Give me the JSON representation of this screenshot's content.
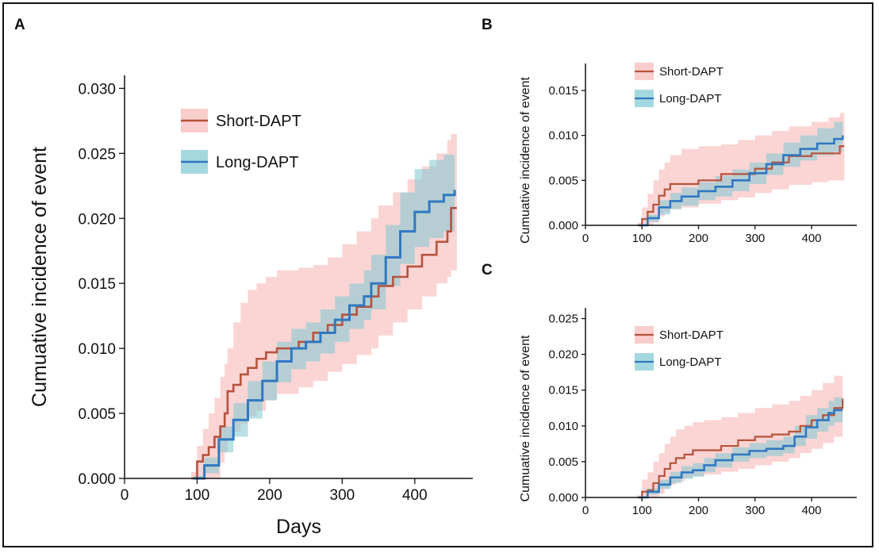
{
  "colors": {
    "short_line": "#b5533c",
    "short_band": "#f8b8b8",
    "long_line": "#2f78c2",
    "long_band": "#7ec8d2"
  },
  "chart_data": [
    {
      "panel": "A",
      "type": "line",
      "xlabel": "Days",
      "ylabel": "Cumuative incidence of event",
      "xlim": [
        0,
        480
      ],
      "ylim": [
        0,
        0.031
      ],
      "xticks": [
        0,
        100,
        200,
        300,
        400
      ],
      "yticks": [
        "0.000",
        "0.005",
        "0.010",
        "0.015",
        "0.020",
        "0.025",
        "0.030"
      ],
      "legend_position": "top-center",
      "series": [
        {
          "name": "Short-DAPT",
          "x": [
            92,
            100,
            108,
            116,
            124,
            132,
            138,
            142,
            150,
            160,
            170,
            182,
            195,
            210,
            240,
            260,
            280,
            300,
            320,
            340,
            350,
            370,
            390,
            410,
            430,
            445,
            450,
            458
          ],
          "y": [
            0,
            0.0013,
            0.0018,
            0.0024,
            0.0032,
            0.004,
            0.005,
            0.0067,
            0.0072,
            0.008,
            0.0085,
            0.0092,
            0.0097,
            0.01,
            0.0105,
            0.0112,
            0.0118,
            0.0126,
            0.0132,
            0.014,
            0.0148,
            0.0155,
            0.0163,
            0.0172,
            0.0182,
            0.019,
            0.0208,
            0.0208
          ],
          "band_upper": [
            0.0005,
            0.0025,
            0.0038,
            0.005,
            0.0062,
            0.0078,
            0.0088,
            0.01,
            0.012,
            0.0135,
            0.0145,
            0.015,
            0.0155,
            0.016,
            0.0162,
            0.0164,
            0.017,
            0.018,
            0.019,
            0.02,
            0.021,
            0.022,
            0.023,
            0.024,
            0.025,
            0.026,
            0.0265,
            0.0265
          ],
          "band_lower": [
            0,
            0,
            0,
            0,
            0,
            0.0012,
            0.002,
            0.003,
            0.0036,
            0.0042,
            0.0048,
            0.0052,
            0.006,
            0.0065,
            0.007,
            0.0075,
            0.0082,
            0.0088,
            0.0095,
            0.01,
            0.011,
            0.012,
            0.013,
            0.014,
            0.015,
            0.0155,
            0.016,
            0.016
          ]
        },
        {
          "name": "Long-DAPT",
          "x": [
            95,
            110,
            130,
            150,
            170,
            190,
            210,
            230,
            250,
            270,
            290,
            310,
            330,
            340,
            360,
            380,
            400,
            420,
            440,
            455
          ],
          "y": [
            0,
            0.001,
            0.003,
            0.0045,
            0.006,
            0.0075,
            0.009,
            0.01,
            0.0105,
            0.0112,
            0.0122,
            0.0133,
            0.014,
            0.015,
            0.017,
            0.019,
            0.0205,
            0.0213,
            0.0218,
            0.0222
          ],
          "band_upper": [
            0.0002,
            0.0016,
            0.004,
            0.0058,
            0.0075,
            0.009,
            0.0105,
            0.0115,
            0.012,
            0.013,
            0.014,
            0.015,
            0.016,
            0.0172,
            0.0195,
            0.022,
            0.0238,
            0.0245,
            0.0249,
            0.025
          ],
          "band_lower": [
            0,
            0.0004,
            0.002,
            0.0032,
            0.0046,
            0.006,
            0.0074,
            0.0084,
            0.009,
            0.0096,
            0.0105,
            0.0115,
            0.0122,
            0.013,
            0.0148,
            0.0165,
            0.0178,
            0.0185,
            0.019,
            0.0193
          ]
        }
      ]
    },
    {
      "panel": "B",
      "type": "line",
      "xlabel": "",
      "ylabel": "Cumuative incidence of event",
      "xlim": [
        0,
        480
      ],
      "ylim": [
        0,
        0.018
      ],
      "xticks": [
        0,
        100,
        200,
        300,
        400
      ],
      "yticks": [
        "0.000",
        "0.005",
        "0.010",
        "0.015"
      ],
      "legend_position": "top-center",
      "series": [
        {
          "name": "Short-DAPT",
          "x": [
            92,
            100,
            110,
            120,
            130,
            140,
            150,
            170,
            200,
            240,
            270,
            300,
            330,
            360,
            400,
            430,
            450,
            458
          ],
          "y": [
            0,
            0.0007,
            0.0015,
            0.0023,
            0.0033,
            0.004,
            0.0046,
            0.0046,
            0.005,
            0.0057,
            0.0057,
            0.0063,
            0.007,
            0.0077,
            0.008,
            0.008,
            0.0088,
            0.0088
          ],
          "band_upper": [
            0.0003,
            0.002,
            0.0035,
            0.005,
            0.0062,
            0.007,
            0.0078,
            0.0085,
            0.0088,
            0.009,
            0.0095,
            0.01,
            0.0105,
            0.011,
            0.0115,
            0.012,
            0.0125,
            0.0125
          ],
          "band_lower": [
            0,
            0,
            0,
            0.0003,
            0.001,
            0.0015,
            0.0018,
            0.002,
            0.0024,
            0.0028,
            0.0031,
            0.0036,
            0.004,
            0.0045,
            0.0048,
            0.005,
            0.005,
            0.005
          ]
        },
        {
          "name": "Long-DAPT",
          "x": [
            95,
            110,
            130,
            150,
            170,
            200,
            230,
            260,
            290,
            320,
            350,
            380,
            410,
            440,
            455
          ],
          "y": [
            0,
            0.0008,
            0.002,
            0.0027,
            0.0032,
            0.0038,
            0.0043,
            0.005,
            0.0058,
            0.0068,
            0.0078,
            0.0085,
            0.0091,
            0.0096,
            0.01
          ],
          "band_upper": [
            0.0002,
            0.0012,
            0.0028,
            0.0036,
            0.0042,
            0.0048,
            0.0055,
            0.0062,
            0.007,
            0.008,
            0.0092,
            0.01,
            0.0108,
            0.0115,
            0.0118
          ],
          "band_lower": [
            0,
            0.0004,
            0.0012,
            0.0018,
            0.0022,
            0.0028,
            0.0032,
            0.0038,
            0.0046,
            0.0056,
            0.0065,
            0.0072,
            0.0078,
            0.0082,
            0.0084
          ]
        }
      ]
    },
    {
      "panel": "C",
      "type": "line",
      "xlabel": "",
      "ylabel": "Cumuative incidence of event",
      "xlim": [
        0,
        480
      ],
      "ylim": [
        0,
        0.0265
      ],
      "xticks": [
        0,
        100,
        200,
        300,
        400
      ],
      "yticks": [
        "0.000",
        "0.005",
        "0.010",
        "0.015",
        "0.020",
        "0.025"
      ],
      "legend_position": "top-center",
      "series": [
        {
          "name": "Short-DAPT",
          "x": [
            92,
            100,
            110,
            120,
            130,
            140,
            150,
            160,
            175,
            190,
            210,
            240,
            270,
            300,
            330,
            360,
            380,
            400,
            420,
            440,
            455
          ],
          "y": [
            0,
            0.0008,
            0.001,
            0.002,
            0.003,
            0.004,
            0.0048,
            0.0055,
            0.006,
            0.0066,
            0.0066,
            0.0072,
            0.008,
            0.0085,
            0.0088,
            0.0092,
            0.01,
            0.0108,
            0.0115,
            0.0125,
            0.0138
          ],
          "band_upper": [
            0.0003,
            0.0025,
            0.0035,
            0.005,
            0.0062,
            0.0075,
            0.0085,
            0.0095,
            0.01,
            0.0105,
            0.0108,
            0.0112,
            0.0118,
            0.0125,
            0.013,
            0.0135,
            0.0142,
            0.015,
            0.016,
            0.017,
            0.0182
          ],
          "band_lower": [
            0,
            0,
            0,
            0,
            0.0005,
            0.0012,
            0.0018,
            0.0022,
            0.0027,
            0.003,
            0.0032,
            0.0036,
            0.004,
            0.0045,
            0.005,
            0.0055,
            0.0062,
            0.0068,
            0.0076,
            0.0085,
            0.0092
          ]
        },
        {
          "name": "Long-DAPT",
          "x": [
            95,
            110,
            130,
            150,
            170,
            190,
            210,
            230,
            260,
            290,
            320,
            350,
            370,
            390,
            410,
            430,
            440,
            455
          ],
          "y": [
            0,
            0.0008,
            0.0018,
            0.0028,
            0.0035,
            0.0038,
            0.0045,
            0.0052,
            0.006,
            0.0065,
            0.0068,
            0.0072,
            0.0085,
            0.0098,
            0.0108,
            0.0118,
            0.0122,
            0.0122
          ],
          "band_upper": [
            0.0002,
            0.0013,
            0.0025,
            0.0036,
            0.0044,
            0.0048,
            0.0055,
            0.0062,
            0.007,
            0.0076,
            0.008,
            0.0085,
            0.01,
            0.0115,
            0.0125,
            0.0135,
            0.014,
            0.0142
          ],
          "band_lower": [
            0,
            0.0004,
            0.0012,
            0.002,
            0.0026,
            0.0029,
            0.0035,
            0.0042,
            0.005,
            0.0055,
            0.0058,
            0.0062,
            0.0072,
            0.0082,
            0.0092,
            0.01,
            0.0105,
            0.0105
          ]
        }
      ]
    }
  ]
}
